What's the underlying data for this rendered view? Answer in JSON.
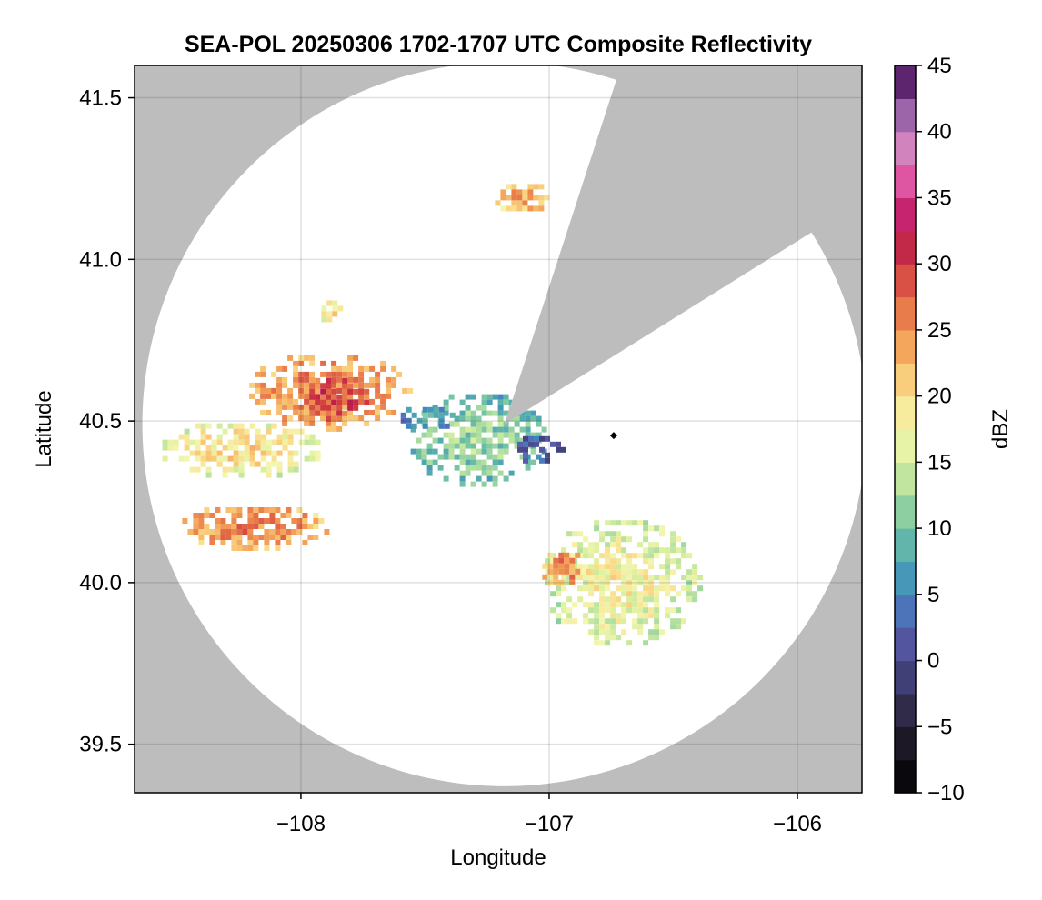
{
  "chart_data": {
    "type": "heatmap",
    "title": "SEA-POL 20250306 1702-1707 UTC Composite Reflectivity",
    "xlabel": "Longitude",
    "ylabel": "Latitude",
    "xlim": [
      -108.67,
      -105.74
    ],
    "ylim": [
      39.35,
      41.6
    ],
    "x_ticks": [
      -108,
      -107,
      -106
    ],
    "x_tick_labels": [
      "−108",
      "−107",
      "−106"
    ],
    "y_ticks": [
      39.5,
      40.0,
      40.5,
      41.0,
      41.5
    ],
    "y_tick_labels": [
      "39.5",
      "40.0",
      "40.5",
      "41.0",
      "41.5"
    ],
    "grid": true,
    "background_color": "#bdbdbd",
    "radar": {
      "center_lon": -107.18,
      "center_lat": 40.49,
      "coverage_radius_deg_lat": 1.12,
      "blocked_sector_deg_from_north": [
        18,
        58
      ],
      "marker_lon": -106.74,
      "marker_lat": 40.455
    },
    "colorbar": {
      "label": "dBZ",
      "min": -10,
      "max": 45,
      "step": 2.5,
      "ticks": [
        -10,
        -5,
        0,
        5,
        10,
        15,
        20,
        25,
        30,
        35,
        40,
        45
      ],
      "tick_labels": [
        "−10",
        "−5",
        "0",
        "5",
        "10",
        "15",
        "20",
        "25",
        "30",
        "35",
        "40",
        "45"
      ],
      "colormap": "Spectral_r with dark purple/black low end"
    },
    "echo_regions": [
      {
        "name": "western band upper",
        "lon": -107.9,
        "lat": 40.6,
        "r_lon": 0.33,
        "r_lat": 0.12,
        "dbz": 22
      },
      {
        "name": "western band core",
        "lon": -107.87,
        "lat": 40.58,
        "r_lon": 0.14,
        "r_lat": 0.07,
        "dbz": 26
      },
      {
        "name": "western tail",
        "lon": -108.25,
        "lat": 40.42,
        "r_lon": 0.33,
        "r_lat": 0.09,
        "dbz": 16
      },
      {
        "name": "western lower tail",
        "lon": -108.2,
        "lat": 40.18,
        "r_lon": 0.3,
        "r_lat": 0.07,
        "dbz": 22
      },
      {
        "name": "central arc",
        "lon": -107.3,
        "lat": 40.45,
        "r_lon": 0.28,
        "r_lat": 0.15,
        "dbz": 8
      },
      {
        "name": "central low-reflectivity",
        "lon": -107.5,
        "lat": 40.52,
        "r_lon": 0.12,
        "r_lat": 0.04,
        "dbz": 4
      },
      {
        "name": "near-radar ring",
        "lon": -107.05,
        "lat": 40.42,
        "r_lon": 0.1,
        "r_lat": 0.05,
        "dbz": 0
      },
      {
        "name": "southeast cell",
        "lon": -106.72,
        "lat": 40.01,
        "r_lon": 0.32,
        "r_lat": 0.2,
        "dbz": 14
      },
      {
        "name": "southeast core",
        "lon": -106.95,
        "lat": 40.05,
        "r_lon": 0.1,
        "r_lat": 0.06,
        "dbz": 22
      },
      {
        "name": "north cell",
        "lon": -107.12,
        "lat": 41.2,
        "r_lon": 0.12,
        "r_lat": 0.05,
        "dbz": 20
      },
      {
        "name": "northwest fragments",
        "lon": -107.88,
        "lat": 40.85,
        "r_lon": 0.06,
        "r_lat": 0.04,
        "dbz": 16
      }
    ]
  }
}
